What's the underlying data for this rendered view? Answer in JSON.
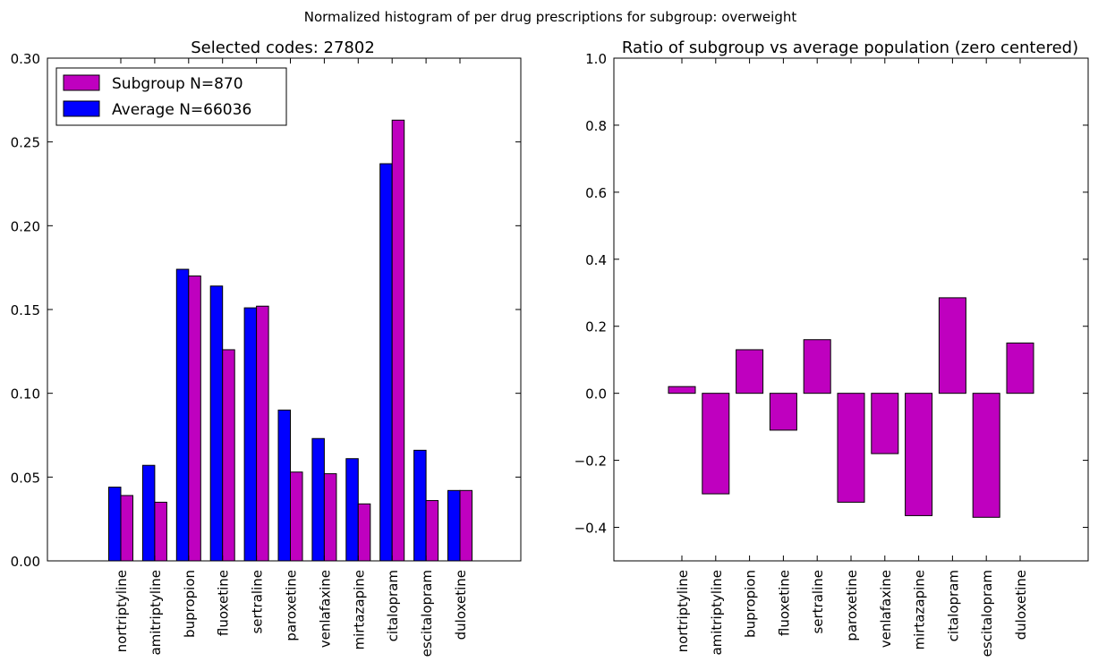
{
  "suptitle": "Normalized histogram of per drug prescriptions for subgroup: overweight",
  "chart_data": [
    {
      "type": "bar",
      "title": "Selected codes: 27802",
      "xlabel": "",
      "ylabel": "",
      "categories": [
        "nortriptyline",
        "amitriptyline",
        "bupropion",
        "fluoxetine",
        "sertraline",
        "paroxetine",
        "venlafaxine",
        "mirtazapine",
        "citalopram",
        "escitalopram",
        "duloxetine"
      ],
      "ylim": [
        0.0,
        0.3
      ],
      "yticks": [
        0.0,
        0.05,
        0.1,
        0.15,
        0.2,
        0.25,
        0.3
      ],
      "ytick_labels": [
        "0.00",
        "0.05",
        "0.10",
        "0.15",
        "0.20",
        "0.25",
        "0.30"
      ],
      "grid": false,
      "legend_position": "top-left",
      "series": [
        {
          "name": "Average N=66036",
          "color": "#0000ff",
          "values": [
            0.044,
            0.057,
            0.174,
            0.164,
            0.151,
            0.09,
            0.073,
            0.061,
            0.237,
            0.066,
            0.042
          ]
        },
        {
          "name": "Subgroup N=870",
          "color": "#bf00bf",
          "values": [
            0.039,
            0.035,
            0.17,
            0.126,
            0.152,
            0.053,
            0.052,
            0.034,
            0.263,
            0.036,
            0.042
          ]
        }
      ],
      "legend_order": [
        "Subgroup N=870",
        "Average N=66036"
      ]
    },
    {
      "type": "bar",
      "title": "Ratio of subgroup vs average population (zero centered)",
      "xlabel": "",
      "ylabel": "",
      "categories": [
        "nortriptyline",
        "amitriptyline",
        "bupropion",
        "fluoxetine",
        "sertraline",
        "paroxetine",
        "venlafaxine",
        "mirtazapine",
        "citalopram",
        "escitalopram",
        "duloxetine"
      ],
      "ylim": [
        -0.5,
        1.0
      ],
      "yticks": [
        -0.4,
        -0.2,
        0.0,
        0.2,
        0.4,
        0.6,
        0.8,
        1.0
      ],
      "ytick_labels": [
        "−0.4",
        "−0.2",
        "0.0",
        "0.2",
        "0.4",
        "0.6",
        "0.8",
        "1.0"
      ],
      "grid": false,
      "series": [
        {
          "name": "",
          "color": "#bf00bf",
          "values": [
            0.02,
            -0.3,
            0.13,
            -0.11,
            0.16,
            -0.325,
            -0.18,
            -0.365,
            0.285,
            -0.37,
            0.15
          ]
        }
      ]
    }
  ]
}
